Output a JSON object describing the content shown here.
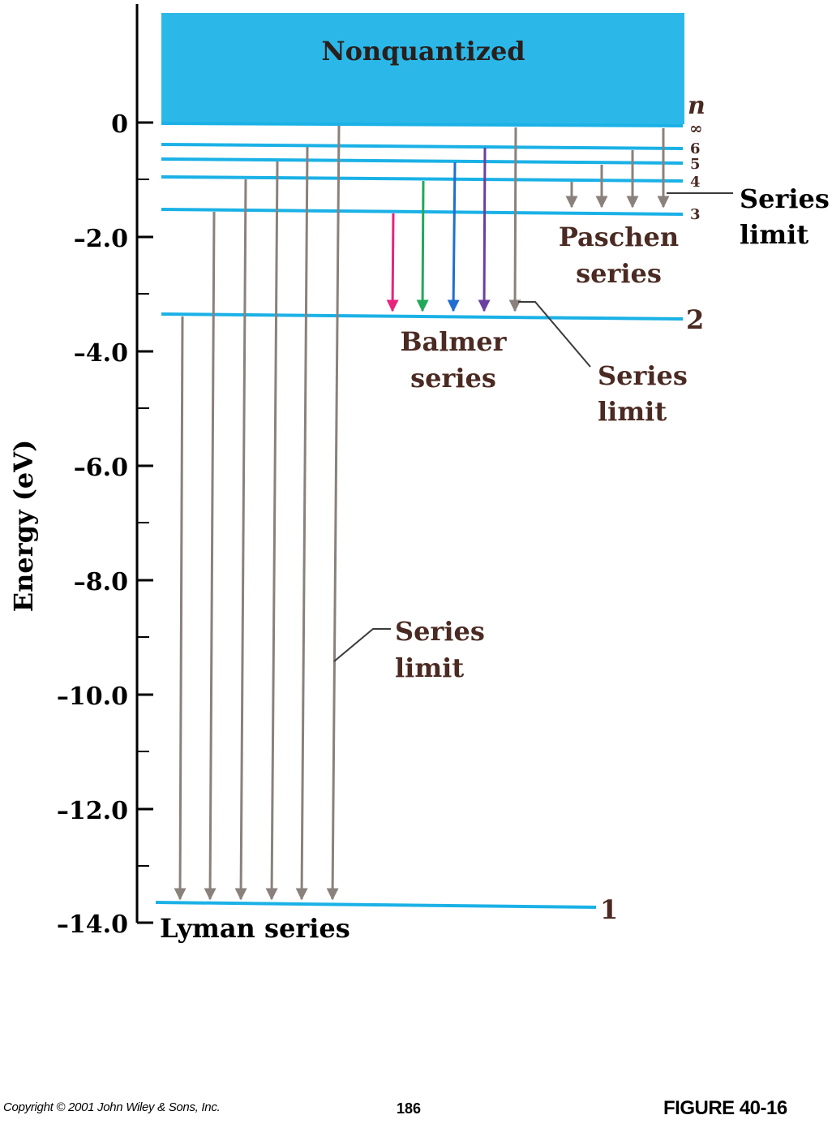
{
  "header": {
    "nonquantized_label": "Nonquantized"
  },
  "axis": {
    "title": "Energy (eV)",
    "ticks": [
      {
        "value": 0,
        "label": "0"
      },
      {
        "value": -2,
        "label": "–2.0"
      },
      {
        "value": -4,
        "label": "–4.0"
      },
      {
        "value": -6,
        "label": "–6.0"
      },
      {
        "value": -8,
        "label": "–8.0"
      },
      {
        "value": -10,
        "label": "–10.0"
      },
      {
        "value": -12,
        "label": "–12.0"
      },
      {
        "value": -14,
        "label": "–14.0"
      }
    ],
    "range": [
      -14,
      0
    ]
  },
  "levels": {
    "n_header": "n",
    "items": [
      {
        "n": "∞",
        "energy": 0.0
      },
      {
        "n": "6",
        "energy": -0.38
      },
      {
        "n": "5",
        "energy": -0.54
      },
      {
        "n": "4",
        "energy": -0.85
      },
      {
        "n": "3",
        "energy": -1.51
      },
      {
        "n": "2",
        "energy": -3.4
      },
      {
        "n": "1",
        "energy": -13.6
      }
    ]
  },
  "series": {
    "lyman": {
      "label": "Lyman series",
      "from_levels": [
        "2",
        "3",
        "4",
        "5",
        "6",
        "∞"
      ],
      "to_level": "1"
    },
    "balmer": {
      "label_line1": "Balmer",
      "label_line2": "series",
      "from_levels": [
        "3",
        "4",
        "5",
        "6",
        "∞"
      ],
      "to_level": "2",
      "arrow_colors": [
        "#e8237b",
        "#22a85a",
        "#1f6fd0",
        "#6b3fa0",
        "#8a817c"
      ]
    },
    "paschen": {
      "label_line1": "Paschen",
      "label_line2": "series",
      "from_levels": [
        "4",
        "5",
        "6",
        "∞"
      ],
      "to_level": "3"
    }
  },
  "annotations": {
    "series_limit_line1": "Series",
    "series_limit_line2": "limit"
  },
  "colors": {
    "level_line": "#1ab1e6",
    "band": "#2bb8e8",
    "arrow": "#8a817c",
    "label_brown": "#4a2a22"
  },
  "footer": {
    "copyright": "Copyright © 2001 John Wiley & Sons, Inc.",
    "page_number": "186",
    "figure_label": "FIGURE 40-16"
  }
}
